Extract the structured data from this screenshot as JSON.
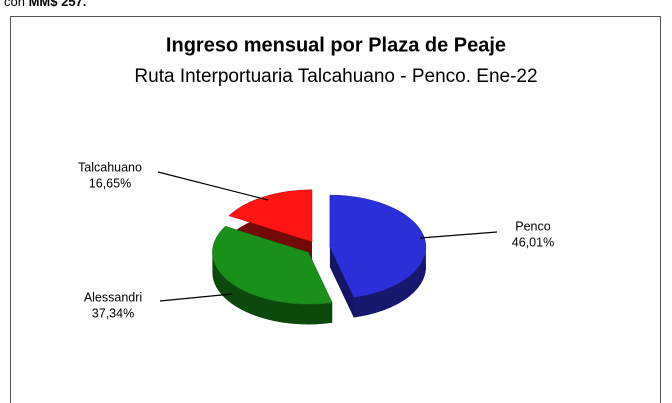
{
  "page_text": {
    "prefix": "con",
    "bold": "MM$ 257."
  },
  "chart_data": {
    "type": "pie",
    "title": "Ingreso mensual por Plaza de Peaje",
    "subtitle": "Ruta Interportuaria Talcahuano - Penco. Ene-22",
    "categories": [
      "Penco",
      "Alessandri",
      "Talcahuano"
    ],
    "values": [
      46.01,
      37.34,
      16.65
    ],
    "value_labels": [
      "46,01%",
      "37,34%",
      "16,65%"
    ],
    "colors": [
      "#2b2fd9",
      "#1a8f1a",
      "#ff1414"
    ]
  }
}
